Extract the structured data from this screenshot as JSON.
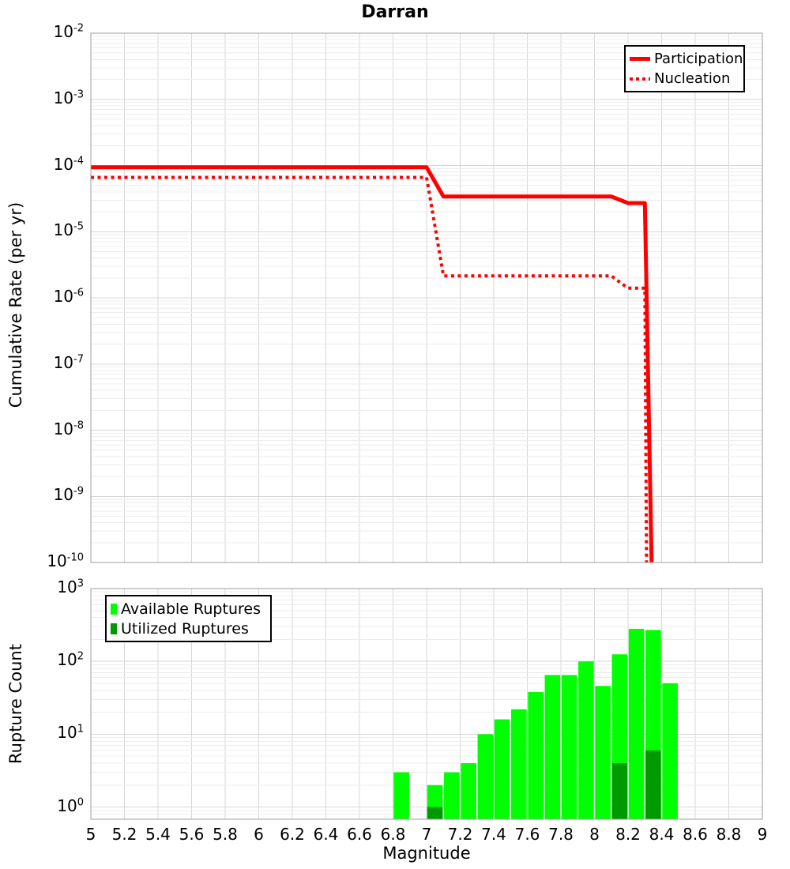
{
  "title": "Darran",
  "axes": {
    "top_ylabel": "Cumulative Rate (per yr)",
    "bottom_ylabel": "Rupture Count",
    "xlabel": "Magnitude"
  },
  "legend_top": {
    "participation": "Participation",
    "nucleation": "Nucleation"
  },
  "legend_bottom": {
    "available": "Available Ruptures",
    "utilized": "Utilized Ruptures"
  },
  "colors": {
    "line_red": "#ff0000",
    "available_green": "#00ff00",
    "utilized_green": "#009900",
    "grid_major": "#d7d7d7",
    "grid_minor": "#ececec",
    "frame": "#9e9e9e"
  },
  "chart_data": [
    {
      "type": "line",
      "title": "Darran",
      "xlabel": "Magnitude",
      "ylabel": "Cumulative Rate (per yr)",
      "xlim": [
        5,
        9
      ],
      "ylim": [
        1e-10,
        0.01
      ],
      "yscale": "log",
      "grid": true,
      "legend_position": "upper right",
      "y_tick_exponents": [
        -2,
        -3,
        -4,
        -5,
        -6,
        -7,
        -8,
        -9,
        -10
      ],
      "series": [
        {
          "name": "Participation",
          "style": "solid",
          "color": "#ff0000",
          "points": [
            [
              5.0,
              9.4e-05
            ],
            [
              7.0,
              9.4e-05
            ],
            [
              7.1,
              3.4e-05
            ],
            [
              8.1,
              3.4e-05
            ],
            [
              8.2,
              2.7e-05
            ],
            [
              8.3,
              2.7e-05
            ],
            [
              8.34,
              1e-10
            ]
          ]
        },
        {
          "name": "Nucleation",
          "style": "dotted",
          "color": "#ff0000",
          "points": [
            [
              5.0,
              6.6e-05
            ],
            [
              7.0,
              6.6e-05
            ],
            [
              7.1,
              2.15e-06
            ],
            [
              8.1,
              2.15e-06
            ],
            [
              8.2,
              1.4e-06
            ],
            [
              8.3,
              1.4e-06
            ],
            [
              8.31,
              1e-10
            ]
          ]
        }
      ]
    },
    {
      "type": "bar",
      "xlabel": "Magnitude",
      "ylabel": "Rupture Count",
      "xlim": [
        5,
        9
      ],
      "ylim": [
        0.68,
        1000
      ],
      "yscale": "log",
      "grid": true,
      "legend_position": "upper left",
      "bar_width": 0.1,
      "x_ticks": [
        "5",
        "5.2",
        "5.4",
        "5.6",
        "5.8",
        "6",
        "6.2",
        "6.4",
        "6.6",
        "6.8",
        "7",
        "7.2",
        "7.4",
        "7.6",
        "7.8",
        "8",
        "8.2",
        "8.4",
        "8.6",
        "8.8",
        "9"
      ],
      "y_tick_exponents": [
        3,
        2,
        1,
        0
      ],
      "categories": [
        6.85,
        7.05,
        7.15,
        7.25,
        7.35,
        7.45,
        7.55,
        7.65,
        7.75,
        7.85,
        7.95,
        8.05,
        8.15,
        8.25,
        8.35,
        8.45
      ],
      "series": [
        {
          "name": "Available Ruptures",
          "color": "#00ff00",
          "values": [
            3,
            2,
            3,
            4,
            10,
            16,
            22,
            38,
            65,
            65,
            100,
            46,
            125,
            280,
            270,
            50
          ]
        },
        {
          "name": "Utilized Ruptures",
          "color": "#009900",
          "values": [
            0,
            1,
            0,
            0,
            0,
            0,
            0,
            0,
            0,
            0,
            0,
            0,
            4,
            0,
            6,
            0
          ]
        }
      ]
    }
  ]
}
